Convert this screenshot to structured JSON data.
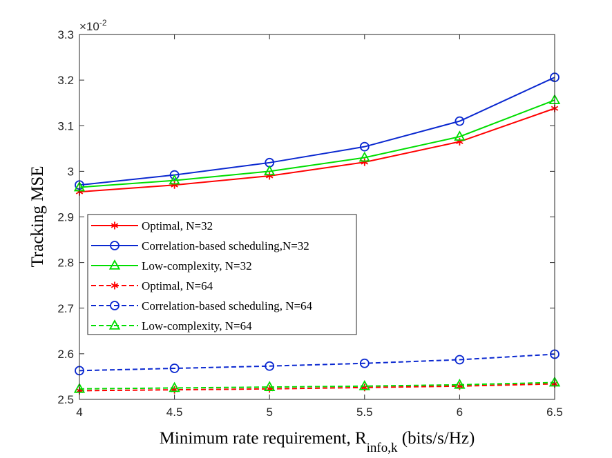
{
  "chart_data": {
    "type": "line",
    "title": "",
    "xlabel": "Minimum rate requirement, R",
    "xlabel_subscript": "info,k",
    "xlabel_suffix": " (bits/s/Hz)",
    "ylabel": "Tracking MSE",
    "y_exponent_base": "×10",
    "y_exponent": "-2",
    "xlim": [
      4,
      6.5
    ],
    "ylim": [
      2.5,
      3.3
    ],
    "x_ticks": [
      4,
      4.5,
      5,
      5.5,
      6,
      6.5
    ],
    "x_tick_labels": [
      "4",
      "4.5",
      "5",
      "5.5",
      "6",
      "6.5"
    ],
    "y_ticks": [
      2.5,
      2.6,
      2.7,
      2.8,
      2.9,
      3.0,
      3.1,
      3.2,
      3.3
    ],
    "y_tick_labels": [
      "2.5",
      "2.6",
      "2.7",
      "2.8",
      "2.9",
      "3",
      "3.1",
      "3.2",
      "3.3"
    ],
    "x": [
      4,
      4.5,
      5,
      5.5,
      6,
      6.5
    ],
    "legend_location": "center-left",
    "series": [
      {
        "name": "Optimal, N=32",
        "color": "#ff0000",
        "dash": "solid",
        "marker": "asterisk",
        "values": [
          2.955,
          2.97,
          2.99,
          3.02,
          3.065,
          3.138
        ]
      },
      {
        "name": "Correlation-based scheduling,N=32",
        "color": "#0a28d0",
        "dash": "solid",
        "marker": "circle",
        "values": [
          2.97,
          2.992,
          3.019,
          3.054,
          3.11,
          3.206
        ]
      },
      {
        "name": "Low-complexity, N=32",
        "color": "#00dd00",
        "dash": "solid",
        "marker": "triangle",
        "values": [
          2.965,
          2.98,
          3.0,
          3.03,
          3.076,
          3.156
        ]
      },
      {
        "name": "Optimal, N=64",
        "color": "#ff0000",
        "dash": "dashed",
        "marker": "asterisk",
        "values": [
          2.519,
          2.521,
          2.523,
          2.526,
          2.529,
          2.534
        ]
      },
      {
        "name": "Correlation-based scheduling, N=64",
        "color": "#0a28d0",
        "dash": "dashed",
        "marker": "circle",
        "values": [
          2.563,
          2.568,
          2.573,
          2.579,
          2.587,
          2.599
        ]
      },
      {
        "name": "Low-complexity, N=64",
        "color": "#00dd00",
        "dash": "dashed",
        "marker": "triangle",
        "values": [
          2.523,
          2.525,
          2.527,
          2.529,
          2.532,
          2.537
        ]
      }
    ]
  }
}
